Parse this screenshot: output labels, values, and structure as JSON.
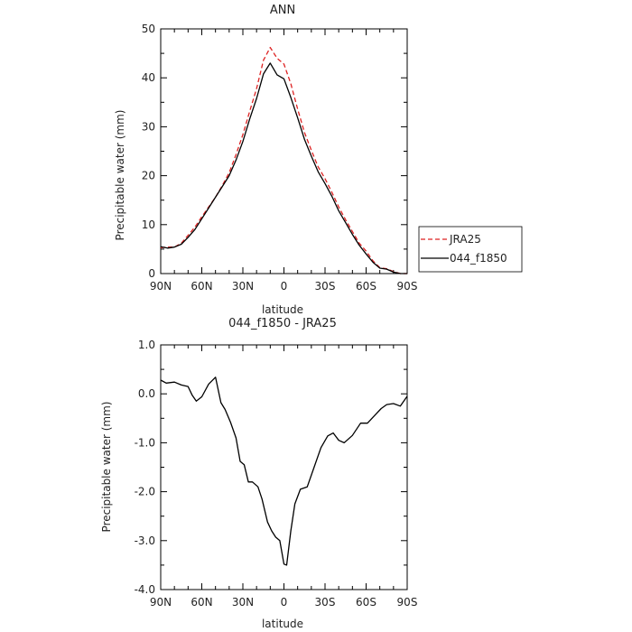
{
  "chart_data": [
    {
      "type": "line",
      "title": "ANN",
      "xlabel": "latitude",
      "ylabel": "Precipitable water (mm)",
      "xticks": [
        "90N",
        "60N",
        "30N",
        "0",
        "30S",
        "60S",
        "90S"
      ],
      "yticks": [
        "0",
        "10",
        "20",
        "30",
        "40",
        "50"
      ],
      "xlim": [
        90,
        -90
      ],
      "ylim": [
        0,
        50
      ],
      "legend_position": "right",
      "series": [
        {
          "name": "JRA25",
          "color": "#dd2222",
          "dash": "dashed",
          "x": [
            90,
            85,
            80,
            75,
            70,
            65,
            60,
            55,
            50,
            45,
            40,
            35,
            30,
            25,
            20,
            15,
            10,
            5,
            0,
            -5,
            -10,
            -15,
            -20,
            -25,
            -30,
            -35,
            -40,
            -45,
            -50,
            -55,
            -60,
            -65,
            -70,
            -75,
            -80,
            -85,
            -90
          ],
          "y": [
            5.3,
            5.4,
            5.4,
            6.2,
            7.8,
            9.5,
            11.6,
            13.6,
            15.6,
            18.0,
            20.6,
            24.3,
            28.4,
            33.2,
            37.8,
            43.6,
            46.2,
            44.0,
            42.8,
            38.8,
            33.6,
            28.8,
            25.2,
            21.8,
            19.4,
            16.6,
            13.6,
            11.0,
            8.6,
            6.2,
            4.6,
            2.6,
            1.2,
            1.0,
            0.4,
            0,
            0
          ]
        },
        {
          "name": "044_f1850",
          "color": "#000000",
          "dash": "solid",
          "x": [
            90,
            85,
            80,
            75,
            70,
            65,
            60,
            55,
            50,
            45,
            40,
            35,
            30,
            25,
            20,
            15,
            10,
            5,
            0,
            -5,
            -10,
            -15,
            -20,
            -25,
            -30,
            -35,
            -40,
            -45,
            -50,
            -55,
            -60,
            -65,
            -70,
            -75,
            -80,
            -85,
            -90
          ],
          "y": [
            5.5,
            5.2,
            5.4,
            6.0,
            7.4,
            9.0,
            11.2,
            13.4,
            15.6,
            17.8,
            20.0,
            23.2,
            27.0,
            31.6,
            35.8,
            40.8,
            43.0,
            40.6,
            39.8,
            36.0,
            31.8,
            27.4,
            24.0,
            20.8,
            18.4,
            15.8,
            12.8,
            10.4,
            8.0,
            5.8,
            4.0,
            2.3,
            1.1,
            0.9,
            0.3,
            0,
            0
          ]
        }
      ]
    },
    {
      "type": "line",
      "title": "044_f1850 - JRA25",
      "xlabel": "latitude",
      "ylabel": "Precipitable water (mm)",
      "xticks": [
        "90N",
        "60N",
        "30N",
        "0",
        "30S",
        "60S",
        "90S"
      ],
      "yticks": [
        "1.0",
        "0.0",
        "-1.0",
        "-2.0",
        "-3.0",
        "-4.0"
      ],
      "xlim": [
        90,
        -90
      ],
      "ylim": [
        -4,
        1
      ],
      "series": [
        {
          "color": "#000000",
          "dash": "solid",
          "x": [
            90,
            86,
            80,
            75,
            70,
            67,
            64,
            60,
            55,
            50,
            46,
            43,
            39,
            35,
            32,
            29,
            26,
            23,
            19,
            16,
            12,
            9,
            6,
            3,
            0,
            -2,
            -5,
            -8,
            -12,
            -17,
            -22,
            -27,
            -32,
            -36,
            -40,
            -44,
            -50,
            -56,
            -61,
            -66,
            -71,
            -75,
            -80,
            -85,
            -90
          ],
          "y": [
            0.28,
            0.22,
            0.24,
            0.18,
            0.15,
            -0.03,
            -0.15,
            -0.06,
            0.2,
            0.34,
            -0.18,
            -0.32,
            -0.58,
            -0.9,
            -1.38,
            -1.45,
            -1.8,
            -1.8,
            -1.9,
            -2.15,
            -2.62,
            -2.8,
            -2.93,
            -3.0,
            -3.48,
            -3.5,
            -2.8,
            -2.25,
            -1.95,
            -1.9,
            -1.5,
            -1.1,
            -0.86,
            -0.8,
            -0.95,
            -1.0,
            -0.85,
            -0.6,
            -0.6,
            -0.45,
            -0.3,
            -0.22,
            -0.2,
            -0.25,
            -0.05
          ]
        }
      ]
    }
  ]
}
